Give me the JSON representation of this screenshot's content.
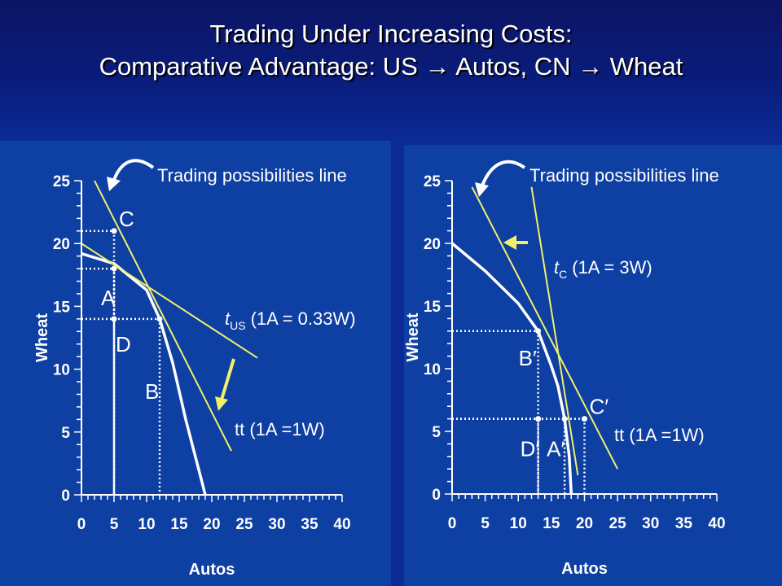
{
  "title": {
    "line1": "Trading Under Increasing Costs:",
    "line2": "Comparative Advantage: US → Autos, CN → Wheat"
  },
  "colors": {
    "background": "#0b2a96",
    "panel": "#0e3fa2",
    "ppf": "#ffffff",
    "trade_lines": "#f2f06a",
    "text": "#ffffff"
  },
  "chart_data": [
    {
      "type": "line",
      "xlabel": "Autos",
      "ylabel": "Wheat",
      "xlim": [
        0,
        40
      ],
      "ylim": [
        0,
        25
      ],
      "xticks": [
        "0",
        "5",
        "10",
        "15",
        "20",
        "25",
        "30",
        "35",
        "40"
      ],
      "yticks": [
        "0",
        "5",
        "10",
        "15",
        "20",
        "25"
      ],
      "series": [
        {
          "role": "ppf",
          "x": [
            0,
            5,
            10,
            12,
            14,
            16,
            18,
            19
          ],
          "y": [
            19.2,
            18.4,
            16.3,
            14,
            10.5,
            6,
            2,
            0
          ]
        },
        {
          "role": "tt",
          "x": [
            2,
            23
          ],
          "y": [
            25,
            3.5
          ]
        },
        {
          "role": "t_us",
          "x": [
            0,
            27
          ],
          "y": [
            20,
            10.9
          ]
        }
      ],
      "points": [
        {
          "label": "A",
          "x": 5,
          "y": 18
        },
        {
          "label": "B",
          "x": 12,
          "y": 14
        },
        {
          "label": "C",
          "x": 5,
          "y": 21
        },
        {
          "label": "D",
          "x": 5,
          "y": 14
        }
      ],
      "annotations": {
        "trading_line": "Trading possibilities line",
        "domestic_line": "t",
        "domestic_sub": "US",
        "domestic_ratio": "(1A = 0.33W)",
        "trade_line": "tt (1A =1W)"
      }
    },
    {
      "type": "line",
      "xlabel": "Autos",
      "ylabel": "Wheat",
      "xlim": [
        0,
        40
      ],
      "ylim": [
        0,
        25
      ],
      "xticks": [
        "0",
        "5",
        "10",
        "15",
        "20",
        "25",
        "30",
        "35",
        "40"
      ],
      "yticks": [
        "0",
        "5",
        "10",
        "15",
        "20",
        "25"
      ],
      "series": [
        {
          "role": "ppf",
          "x": [
            0,
            5,
            10,
            13,
            15,
            16,
            17,
            17.7,
            18
          ],
          "y": [
            20,
            17.8,
            15.2,
            13,
            10.2,
            8.6,
            6,
            3,
            0
          ]
        },
        {
          "role": "tt",
          "x": [
            3,
            25
          ],
          "y": [
            24.5,
            2
          ]
        },
        {
          "role": "t_cn",
          "x": [
            12,
            19
          ],
          "y": [
            24.5,
            1.5
          ]
        }
      ],
      "points": [
        {
          "label": "B′",
          "x": 13,
          "y": 13
        },
        {
          "label": "A′",
          "x": 17,
          "y": 6
        },
        {
          "label": "C′",
          "x": 20,
          "y": 6
        },
        {
          "label": "D′",
          "x": 13,
          "y": 6
        }
      ],
      "annotations": {
        "trading_line": "Trading possibilities line",
        "domestic_line": "t",
        "domestic_sub": "C",
        "domestic_ratio": "(1A = 3W)",
        "trade_line": "tt (1A =1W)"
      }
    }
  ]
}
